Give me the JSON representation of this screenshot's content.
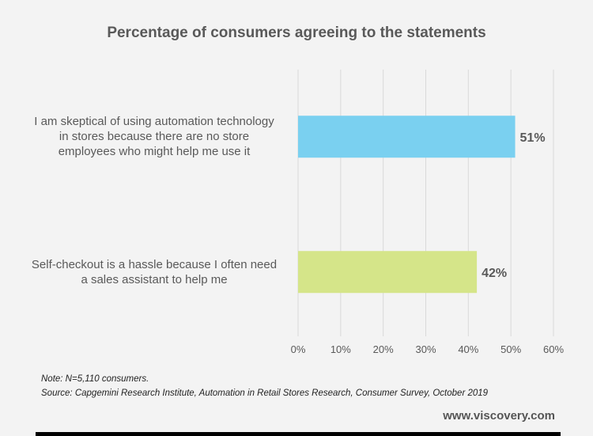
{
  "chart_data": {
    "type": "bar",
    "orientation": "horizontal",
    "title": "Percentage of consumers agreeing to the statements",
    "categories": [
      [
        "I am skeptical of using automation technology",
        "in stores because there are no store",
        "employees who might help me use it"
      ],
      [
        "Self-checkout is a hassle because I often need",
        "a sales assistant to help me"
      ]
    ],
    "values": [
      51,
      42
    ],
    "data_labels": [
      "51%",
      "42%"
    ],
    "colors": [
      "#7ad0f0",
      "#d5e589"
    ],
    "xlim": [
      0,
      60
    ],
    "xticks": [
      0,
      10,
      20,
      30,
      40,
      50,
      60
    ],
    "xtick_labels": [
      "0%",
      "10%",
      "20%",
      "30%",
      "40%",
      "50%",
      "60%"
    ],
    "grid": "vertical",
    "xlabel": "",
    "ylabel": ""
  },
  "footer": {
    "note": "Note: N=5,110 consumers.",
    "source": "Source: Capgemini Research Institute, Automation in Retail Stores Research, Consumer Survey, October 2019",
    "site": "www.viscovery.com"
  }
}
